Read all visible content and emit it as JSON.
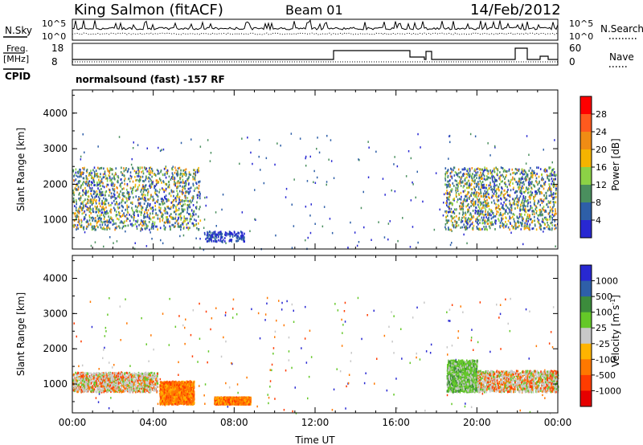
{
  "header": {
    "station": "King Salmon (fitACF)",
    "beam": "Beam 01",
    "date": "14/Feb/2012"
  },
  "top_panels": {
    "nsky_label": "N.Sky",
    "nsky_ticks": [
      "10^5",
      "10^0"
    ],
    "nsearch_label": "N.Search",
    "freq_label_1": "Freq.",
    "freq_label_2": "[MHz]",
    "freq_ticks": [
      "18",
      "8"
    ],
    "nave_label": "Nave",
    "nave_ticks": [
      "60",
      "0"
    ],
    "cpid_label": "CPID",
    "cpid_value": "normalsound (fast) -157 RF"
  },
  "chart_data": [
    {
      "type": "heatmap",
      "name": "power",
      "ylabel": "Slant Range [km]",
      "xlabel": "",
      "ylim": [
        180,
        4650
      ],
      "yticks": [
        "1000",
        "2000",
        "3000",
        "4000"
      ],
      "ytick_values": [
        1000,
        2000,
        3000,
        4000
      ],
      "colorbar": {
        "label": "Power [dB]",
        "ticks": [
          "28",
          "24",
          "20",
          "16",
          "12",
          "8",
          "4"
        ],
        "colors": [
          "#ff0000",
          "#ff5a1e",
          "#f08c14",
          "#f5b400",
          "#8cd246",
          "#4a8f5e",
          "#2e5fa8",
          "#2828d2"
        ]
      },
      "regions": [
        {
          "t0": 0.0,
          "t1": 6.3,
          "r0": 750,
          "r1": 2500,
          "kind": "main"
        },
        {
          "t0": 6.5,
          "t1": 8.5,
          "r0": 420,
          "r1": 700,
          "kind": "weak"
        },
        {
          "t0": 18.4,
          "t1": 23.9,
          "r0": 750,
          "r1": 2500,
          "kind": "main"
        }
      ]
    },
    {
      "type": "heatmap",
      "name": "velocity",
      "ylabel": "Slant Range [km]",
      "xlabel": "Time UT",
      "xlim": [
        "00:00",
        "24:00"
      ],
      "xticks": [
        "00:00",
        "04:00",
        "08:00",
        "12:00",
        "16:00",
        "20:00",
        "00:00"
      ],
      "ylim": [
        180,
        4650
      ],
      "yticks": [
        "1000",
        "2000",
        "3000",
        "4000"
      ],
      "ytick_values": [
        1000,
        2000,
        3000,
        4000
      ],
      "colorbar": {
        "label": "Velocity [m s-1]",
        "ticks": [
          "1000",
          "500",
          "100",
          "25",
          "-25",
          "-100",
          "-500",
          "-1000"
        ],
        "colors": [
          "#2828d2",
          "#2e5fa8",
          "#3c8c3c",
          "#64c828",
          "#c8c8c8",
          "#ffb400",
          "#ff7800",
          "#ff3c00",
          "#e60000"
        ]
      },
      "regions": [
        {
          "t0": 0.0,
          "t1": 4.2,
          "r0": 800,
          "r1": 1350,
          "kind": "ground"
        },
        {
          "t0": 4.3,
          "t1": 6.0,
          "r0": 450,
          "r1": 1100,
          "kind": "negative"
        },
        {
          "t0": 7.0,
          "t1": 8.8,
          "r0": 450,
          "r1": 650,
          "kind": "negative"
        },
        {
          "t0": 18.5,
          "t1": 20.0,
          "r0": 800,
          "r1": 1700,
          "kind": "positive"
        },
        {
          "t0": 20.0,
          "t1": 24.0,
          "r0": 800,
          "r1": 1400,
          "kind": "ground"
        }
      ]
    }
  ]
}
